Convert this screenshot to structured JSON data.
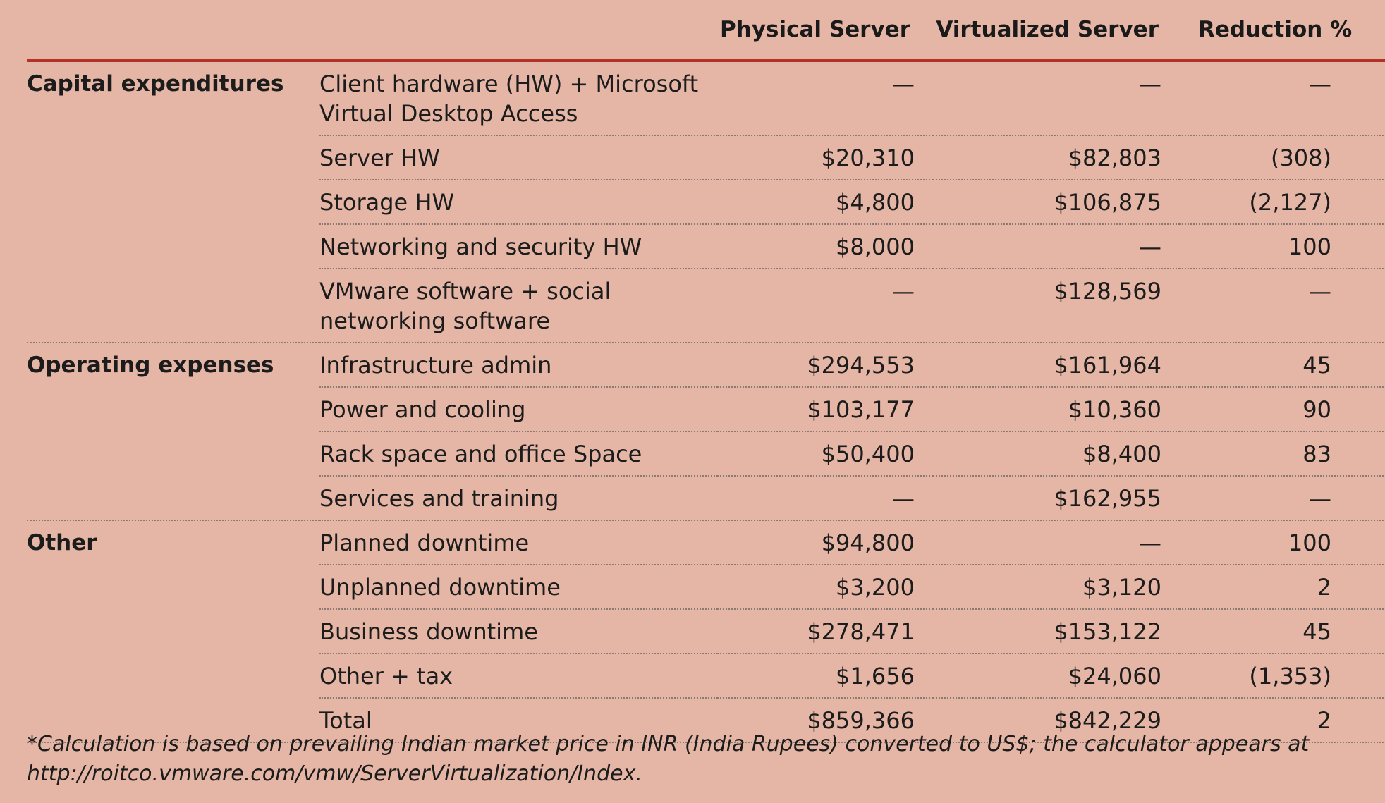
{
  "headers": {
    "category": "",
    "item": "",
    "physical": "Physical Server",
    "virtualized": "Virtualized Server",
    "reduction": "Reduction %"
  },
  "groups": [
    {
      "category": "Capital expenditures",
      "rows": [
        {
          "item": "Client hardware (HW) + Microsoft Virtual Desktop Access",
          "physical": "—",
          "virtualized": "—",
          "reduction": "—"
        },
        {
          "item": "Server HW",
          "physical": "$20,310",
          "virtualized": "$82,803",
          "reduction": "(308)"
        },
        {
          "item": "Storage HW",
          "physical": "$4,800",
          "virtualized": "$106,875",
          "reduction": "(2,127)"
        },
        {
          "item": "Networking and security HW",
          "physical": "$8,000",
          "virtualized": "—",
          "reduction": "100"
        },
        {
          "item": "VMware software + social networking software",
          "physical": "—",
          "virtualized": "$128,569",
          "reduction": "—"
        }
      ]
    },
    {
      "category": "Operating expenses",
      "rows": [
        {
          "item": "Infrastructure admin",
          "physical": "$294,553",
          "virtualized": "$161,964",
          "reduction": "45"
        },
        {
          "item": "Power and cooling",
          "physical": "$103,177",
          "virtualized": "$10,360",
          "reduction": "90"
        },
        {
          "item": "Rack space and office Space",
          "physical": "$50,400",
          "virtualized": "$8,400",
          "reduction": "83"
        },
        {
          "item": "Services and training",
          "physical": "—",
          "virtualized": "$162,955",
          "reduction": "—"
        }
      ]
    },
    {
      "category": "Other",
      "rows": [
        {
          "item": "Planned downtime",
          "physical": "$94,800",
          "virtualized": "—",
          "reduction": "100"
        },
        {
          "item": "Unplanned downtime",
          "physical": "$3,200",
          "virtualized": "$3,120",
          "reduction": "2"
        },
        {
          "item": "Business downtime",
          "physical": "$278,471",
          "virtualized": "$153,122",
          "reduction": "45"
        },
        {
          "item": "Other + tax",
          "physical": "$1,656",
          "virtualized": "$24,060",
          "reduction": "(1,353)"
        },
        {
          "item": "Total",
          "physical": "$859,366",
          "virtualized": "$842,229",
          "reduction": "2"
        }
      ]
    }
  ],
  "footnote": "*Calculation is based on prevailing Indian market price in INR (India Rupees) converted to US$; the calculator appears at http://roitco.vmware.com/vmw/ServerVirtualization/Index.",
  "colors": {
    "background": "#e5b6a5",
    "header_rule": "#b23227",
    "text": "#1c1c1c"
  }
}
